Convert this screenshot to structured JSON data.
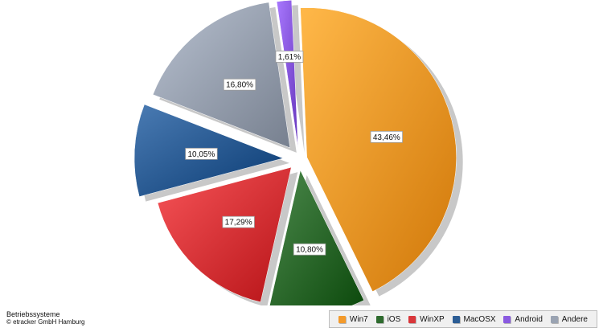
{
  "chart_data": {
    "type": "pie",
    "categories": [
      "Win7",
      "iOS",
      "WinXP",
      "MacOSX",
      "Andere",
      "Android"
    ],
    "values": [
      43.46,
      10.8,
      17.29,
      10.05,
      16.8,
      1.61
    ],
    "labels": [
      "43,46%",
      "10,80%",
      "17,29%",
      "10,05%",
      "16,80%",
      "1,61%"
    ],
    "colors": [
      "#f39a2b",
      "#2e6b2e",
      "#d9363a",
      "#2c5d95",
      "#9aa3b2",
      "#8a5ae0"
    ],
    "exploded": true,
    "legend_position": "bottom-right"
  },
  "caption": {
    "title": "Betriebssysteme",
    "copyright": "© etracker GmbH Hamburg"
  },
  "legend": [
    {
      "label": "Win7",
      "color": "#f39a2b"
    },
    {
      "label": "iOS",
      "color": "#2e6b2e"
    },
    {
      "label": "WinXP",
      "color": "#d9363a"
    },
    {
      "label": "MacOSX",
      "color": "#2c5d95"
    },
    {
      "label": "Android",
      "color": "#8a5ae0"
    },
    {
      "label": "Andere",
      "color": "#9aa3b2"
    }
  ]
}
